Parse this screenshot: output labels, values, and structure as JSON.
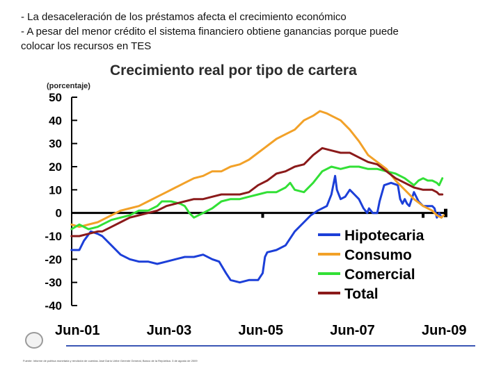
{
  "slide": {
    "bullets": [
      "- La desaceleración de los préstamos afecta el crecimiento económico",
      "- A pesar del menor crédito el sistema financiero obtiene ganancias porque puede",
      "colocar los recursos en TES"
    ],
    "source": "Fuente: Informe de política monetaria y rendición de cuentas José Darío Uribe Gerente General, Banco de la República. 3 de agosto de 2009"
  },
  "chart_data": {
    "type": "line",
    "title": "Crecimiento real por tipo de cartera",
    "ylabel": "(porcentaje)",
    "xlabel": "",
    "ylim": [
      -40,
      50
    ],
    "yticks": [
      -40,
      -30,
      -20,
      -10,
      0,
      10,
      20,
      30,
      40,
      50
    ],
    "xlim": [
      2001.333,
      2009.5
    ],
    "xticks": [
      {
        "label": "Jun-01",
        "value": 2001.458
      },
      {
        "label": "Jun-03",
        "value": 2003.458
      },
      {
        "label": "Jun-05",
        "value": 2005.458
      },
      {
        "label": "Jun-07",
        "value": 2007.458
      },
      {
        "label": "Jun-09",
        "value": 2009.458
      }
    ],
    "legend_position": "bottom-right",
    "series": [
      {
        "name": "Hipotecaria",
        "color": "#1c3fd8",
        "points": [
          [
            2001.33,
            -16
          ],
          [
            2001.5,
            -16
          ],
          [
            2001.6,
            -12
          ],
          [
            2001.75,
            -8
          ],
          [
            2001.9,
            -9
          ],
          [
            2002.0,
            -10
          ],
          [
            2002.2,
            -14
          ],
          [
            2002.4,
            -18
          ],
          [
            2002.6,
            -20
          ],
          [
            2002.8,
            -21
          ],
          [
            2003.0,
            -21
          ],
          [
            2003.2,
            -22
          ],
          [
            2003.4,
            -21
          ],
          [
            2003.6,
            -20
          ],
          [
            2003.8,
            -19
          ],
          [
            2004.0,
            -19
          ],
          [
            2004.2,
            -18
          ],
          [
            2004.4,
            -20
          ],
          [
            2004.55,
            -21
          ],
          [
            2004.7,
            -26
          ],
          [
            2004.8,
            -29
          ],
          [
            2005.0,
            -30
          ],
          [
            2005.2,
            -29
          ],
          [
            2005.4,
            -29
          ],
          [
            2005.5,
            -26
          ],
          [
            2005.55,
            -19
          ],
          [
            2005.6,
            -17
          ],
          [
            2005.8,
            -16
          ],
          [
            2006.0,
            -14
          ],
          [
            2006.2,
            -8
          ],
          [
            2006.4,
            -4
          ],
          [
            2006.5,
            -2
          ],
          [
            2006.55,
            -1
          ],
          [
            2006.7,
            1
          ],
          [
            2006.9,
            3
          ],
          [
            2007.0,
            8
          ],
          [
            2007.08,
            16
          ],
          [
            2007.12,
            10
          ],
          [
            2007.2,
            6
          ],
          [
            2007.3,
            7
          ],
          [
            2007.4,
            10
          ],
          [
            2007.5,
            8
          ],
          [
            2007.6,
            6
          ],
          [
            2007.7,
            2
          ],
          [
            2007.78,
            0
          ],
          [
            2007.82,
            2
          ],
          [
            2007.9,
            0
          ],
          [
            2008.0,
            0
          ],
          [
            2008.05,
            5
          ],
          [
            2008.15,
            12
          ],
          [
            2008.3,
            13
          ],
          [
            2008.45,
            12
          ],
          [
            2008.5,
            6
          ],
          [
            2008.55,
            4
          ],
          [
            2008.6,
            6
          ],
          [
            2008.65,
            4
          ],
          [
            2008.7,
            3
          ],
          [
            2008.8,
            9
          ],
          [
            2008.9,
            5
          ],
          [
            2009.0,
            3
          ],
          [
            2009.1,
            3
          ],
          [
            2009.2,
            3
          ],
          [
            2009.25,
            2
          ],
          [
            2009.3,
            -2
          ],
          [
            2009.35,
            0
          ],
          [
            2009.4,
            -2
          ]
        ]
      },
      {
        "name": "Consumo",
        "color": "#f2a128",
        "points": [
          [
            2001.33,
            -5
          ],
          [
            2001.5,
            -6
          ],
          [
            2001.7,
            -5
          ],
          [
            2001.9,
            -4
          ],
          [
            2002.0,
            -3
          ],
          [
            2002.2,
            -1
          ],
          [
            2002.4,
            1
          ],
          [
            2002.6,
            2
          ],
          [
            2002.8,
            3
          ],
          [
            2003.0,
            5
          ],
          [
            2003.2,
            7
          ],
          [
            2003.4,
            9
          ],
          [
            2003.6,
            11
          ],
          [
            2003.8,
            13
          ],
          [
            2004.0,
            15
          ],
          [
            2004.2,
            16
          ],
          [
            2004.4,
            18
          ],
          [
            2004.6,
            18
          ],
          [
            2004.8,
            20
          ],
          [
            2005.0,
            21
          ],
          [
            2005.2,
            23
          ],
          [
            2005.4,
            26
          ],
          [
            2005.6,
            29
          ],
          [
            2005.8,
            32
          ],
          [
            2006.0,
            34
          ],
          [
            2006.2,
            36
          ],
          [
            2006.4,
            40
          ],
          [
            2006.6,
            42
          ],
          [
            2006.75,
            44
          ],
          [
            2006.9,
            43
          ],
          [
            2007.0,
            42
          ],
          [
            2007.2,
            40
          ],
          [
            2007.4,
            36
          ],
          [
            2007.6,
            31
          ],
          [
            2007.8,
            25
          ],
          [
            2008.0,
            22
          ],
          [
            2008.2,
            19
          ],
          [
            2008.4,
            14
          ],
          [
            2008.6,
            10
          ],
          [
            2008.8,
            6
          ],
          [
            2009.0,
            3
          ],
          [
            2009.2,
            1
          ],
          [
            2009.3,
            -1
          ],
          [
            2009.4,
            -2
          ],
          [
            2009.45,
            -1
          ]
        ]
      },
      {
        "name": "Comercial",
        "color": "#32e036",
        "points": [
          [
            2001.33,
            -7
          ],
          [
            2001.5,
            -5
          ],
          [
            2001.7,
            -7
          ],
          [
            2001.9,
            -6
          ],
          [
            2002.0,
            -5
          ],
          [
            2002.2,
            -3
          ],
          [
            2002.4,
            -2
          ],
          [
            2002.6,
            -1
          ],
          [
            2002.8,
            1
          ],
          [
            2003.0,
            1
          ],
          [
            2003.2,
            3
          ],
          [
            2003.3,
            5
          ],
          [
            2003.5,
            5
          ],
          [
            2003.7,
            4
          ],
          [
            2003.8,
            3
          ],
          [
            2003.9,
            0
          ],
          [
            2004.0,
            -2
          ],
          [
            2004.2,
            0
          ],
          [
            2004.4,
            2
          ],
          [
            2004.6,
            5
          ],
          [
            2004.8,
            6
          ],
          [
            2005.0,
            6
          ],
          [
            2005.2,
            7
          ],
          [
            2005.4,
            8
          ],
          [
            2005.6,
            9
          ],
          [
            2005.8,
            9
          ],
          [
            2006.0,
            11
          ],
          [
            2006.1,
            13
          ],
          [
            2006.2,
            10
          ],
          [
            2006.4,
            9
          ],
          [
            2006.6,
            13
          ],
          [
            2006.8,
            18
          ],
          [
            2007.0,
            20
          ],
          [
            2007.2,
            19
          ],
          [
            2007.4,
            20
          ],
          [
            2007.6,
            20
          ],
          [
            2007.8,
            19
          ],
          [
            2008.0,
            19
          ],
          [
            2008.2,
            18
          ],
          [
            2008.4,
            17
          ],
          [
            2008.6,
            15
          ],
          [
            2008.8,
            12
          ],
          [
            2008.9,
            14
          ],
          [
            2009.0,
            15
          ],
          [
            2009.1,
            14
          ],
          [
            2009.2,
            14
          ],
          [
            2009.3,
            13
          ],
          [
            2009.35,
            12
          ],
          [
            2009.42,
            15
          ]
        ]
      },
      {
        "name": "Total",
        "color": "#8b1a1a",
        "points": [
          [
            2001.33,
            -10
          ],
          [
            2001.5,
            -10
          ],
          [
            2001.7,
            -9
          ],
          [
            2001.9,
            -8
          ],
          [
            2002.0,
            -8
          ],
          [
            2002.2,
            -6
          ],
          [
            2002.4,
            -4
          ],
          [
            2002.6,
            -2
          ],
          [
            2002.8,
            -1
          ],
          [
            2003.0,
            0
          ],
          [
            2003.2,
            1
          ],
          [
            2003.4,
            3
          ],
          [
            2003.6,
            4
          ],
          [
            2003.8,
            5
          ],
          [
            2004.0,
            6
          ],
          [
            2004.2,
            6
          ],
          [
            2004.4,
            7
          ],
          [
            2004.6,
            8
          ],
          [
            2004.8,
            8
          ],
          [
            2005.0,
            8
          ],
          [
            2005.2,
            9
          ],
          [
            2005.4,
            12
          ],
          [
            2005.6,
            14
          ],
          [
            2005.8,
            17
          ],
          [
            2006.0,
            18
          ],
          [
            2006.2,
            20
          ],
          [
            2006.4,
            21
          ],
          [
            2006.6,
            25
          ],
          [
            2006.8,
            28
          ],
          [
            2007.0,
            27
          ],
          [
            2007.2,
            26
          ],
          [
            2007.4,
            26
          ],
          [
            2007.6,
            24
          ],
          [
            2007.8,
            22
          ],
          [
            2008.0,
            21
          ],
          [
            2008.2,
            18
          ],
          [
            2008.4,
            15
          ],
          [
            2008.6,
            13
          ],
          [
            2008.8,
            11
          ],
          [
            2009.0,
            10
          ],
          [
            2009.2,
            10
          ],
          [
            2009.3,
            9
          ],
          [
            2009.35,
            8
          ],
          [
            2009.42,
            8
          ]
        ]
      }
    ]
  }
}
